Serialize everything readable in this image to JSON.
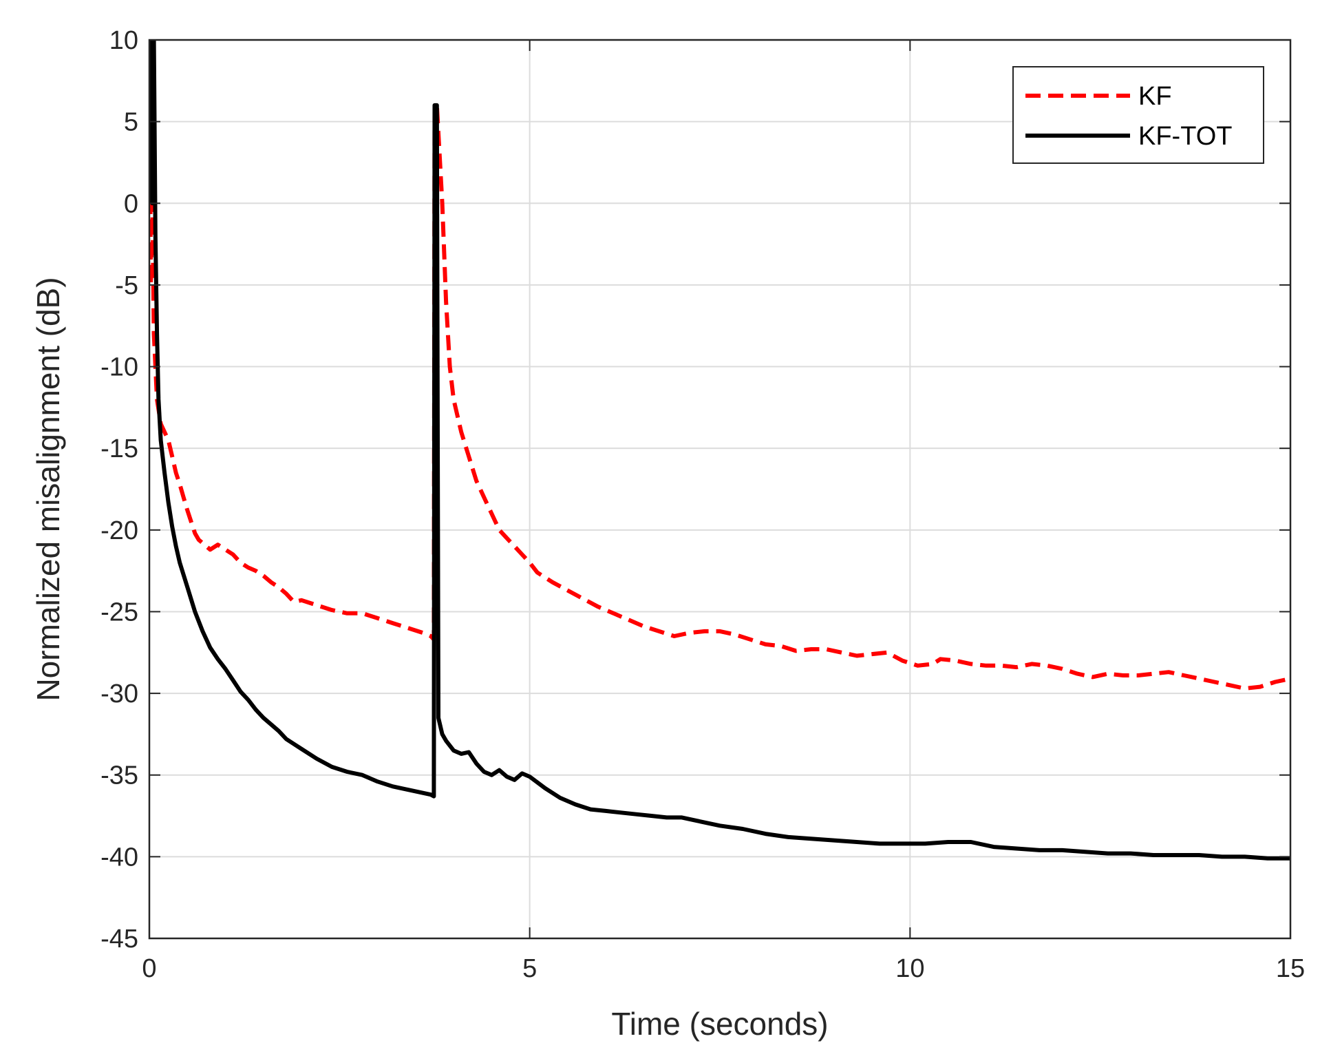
{
  "chart_data": {
    "type": "line",
    "xlabel": "Time (seconds)",
    "ylabel": "Normalized misalignment (dB)",
    "xlim": [
      0,
      15
    ],
    "ylim": [
      -45,
      10
    ],
    "xticks": [
      0,
      5,
      10,
      15
    ],
    "yticks": [
      10,
      5,
      0,
      -5,
      -10,
      -15,
      -20,
      -25,
      -30,
      -35,
      -40,
      -45
    ],
    "grid": true,
    "legend_position": "top-right",
    "series": [
      {
        "name": "KF",
        "color": "#ff0000",
        "style": "dashed",
        "points": [
          [
            0,
            10
          ],
          [
            0.02,
            -5
          ],
          [
            0.04,
            0
          ],
          [
            0.06,
            -8
          ],
          [
            0.08,
            -10
          ],
          [
            0.1,
            -12
          ],
          [
            0.15,
            -13.5
          ],
          [
            0.2,
            -14
          ],
          [
            0.25,
            -14.5
          ],
          [
            0.3,
            -15.5
          ],
          [
            0.35,
            -16.5
          ],
          [
            0.4,
            -17.2
          ],
          [
            0.45,
            -18
          ],
          [
            0.5,
            -18.8
          ],
          [
            0.55,
            -19.5
          ],
          [
            0.6,
            -20.2
          ],
          [
            0.65,
            -20.6
          ],
          [
            0.7,
            -20.8
          ],
          [
            0.8,
            -21.2
          ],
          [
            0.9,
            -20.9
          ],
          [
            1.0,
            -21.2
          ],
          [
            1.1,
            -21.5
          ],
          [
            1.2,
            -22
          ],
          [
            1.3,
            -22.3
          ],
          [
            1.4,
            -22.5
          ],
          [
            1.5,
            -22.8
          ],
          [
            1.6,
            -23.2
          ],
          [
            1.7,
            -23.5
          ],
          [
            1.8,
            -23.9
          ],
          [
            1.9,
            -24.4
          ],
          [
            2.0,
            -24.3
          ],
          [
            2.2,
            -24.6
          ],
          [
            2.4,
            -24.9
          ],
          [
            2.6,
            -25.1
          ],
          [
            2.8,
            -25.1
          ],
          [
            3.0,
            -25.4
          ],
          [
            3.2,
            -25.7
          ],
          [
            3.4,
            -26.0
          ],
          [
            3.6,
            -26.3
          ],
          [
            3.7,
            -26.5
          ],
          [
            3.74,
            -26.7
          ],
          [
            3.75,
            6
          ],
          [
            3.78,
            6
          ],
          [
            3.85,
            0
          ],
          [
            3.9,
            -6
          ],
          [
            3.95,
            -10
          ],
          [
            4.0,
            -12
          ],
          [
            4.1,
            -14
          ],
          [
            4.2,
            -15.5
          ],
          [
            4.3,
            -17
          ],
          [
            4.4,
            -18
          ],
          [
            4.5,
            -19
          ],
          [
            4.6,
            -20
          ],
          [
            4.7,
            -20.5
          ],
          [
            4.8,
            -21
          ],
          [
            4.9,
            -21.5
          ],
          [
            5.0,
            -22
          ],
          [
            5.1,
            -22.6
          ],
          [
            5.3,
            -23.2
          ],
          [
            5.5,
            -23.7
          ],
          [
            5.7,
            -24.2
          ],
          [
            5.9,
            -24.7
          ],
          [
            6.1,
            -25.1
          ],
          [
            6.3,
            -25.5
          ],
          [
            6.5,
            -25.9
          ],
          [
            6.7,
            -26.2
          ],
          [
            6.9,
            -26.5
          ],
          [
            7.1,
            -26.3
          ],
          [
            7.3,
            -26.2
          ],
          [
            7.5,
            -26.2
          ],
          [
            7.7,
            -26.4
          ],
          [
            7.9,
            -26.7
          ],
          [
            8.1,
            -27
          ],
          [
            8.3,
            -27.1
          ],
          [
            8.5,
            -27.4
          ],
          [
            8.7,
            -27.3
          ],
          [
            8.9,
            -27.3
          ],
          [
            9.1,
            -27.5
          ],
          [
            9.3,
            -27.7
          ],
          [
            9.5,
            -27.6
          ],
          [
            9.7,
            -27.5
          ],
          [
            9.9,
            -28
          ],
          [
            10.1,
            -28.3
          ],
          [
            10.3,
            -28.2
          ],
          [
            10.4,
            -27.9
          ],
          [
            10.6,
            -28
          ],
          [
            10.8,
            -28.2
          ],
          [
            11.0,
            -28.3
          ],
          [
            11.2,
            -28.3
          ],
          [
            11.4,
            -28.4
          ],
          [
            11.6,
            -28.2
          ],
          [
            11.8,
            -28.3
          ],
          [
            12.0,
            -28.5
          ],
          [
            12.2,
            -28.8
          ],
          [
            12.4,
            -29
          ],
          [
            12.6,
            -28.8
          ],
          [
            12.8,
            -28.9
          ],
          [
            13.0,
            -28.9
          ],
          [
            13.2,
            -28.8
          ],
          [
            13.4,
            -28.7
          ],
          [
            13.6,
            -28.9
          ],
          [
            13.8,
            -29.1
          ],
          [
            14.0,
            -29.3
          ],
          [
            14.2,
            -29.5
          ],
          [
            14.4,
            -29.7
          ],
          [
            14.6,
            -29.6
          ],
          [
            14.8,
            -29.3
          ],
          [
            15.0,
            -29.1
          ]
        ]
      },
      {
        "name": "KF-TOT",
        "color": "#000000",
        "style": "solid",
        "points": [
          [
            0,
            0
          ],
          [
            0.02,
            10
          ],
          [
            0.04,
            0
          ],
          [
            0.06,
            10
          ],
          [
            0.08,
            -2
          ],
          [
            0.1,
            -8
          ],
          [
            0.12,
            -12
          ],
          [
            0.15,
            -14.5
          ],
          [
            0.2,
            -16.5
          ],
          [
            0.25,
            -18.3
          ],
          [
            0.3,
            -19.8
          ],
          [
            0.35,
            -21
          ],
          [
            0.4,
            -22
          ],
          [
            0.5,
            -23.5
          ],
          [
            0.6,
            -25
          ],
          [
            0.7,
            -26.2
          ],
          [
            0.8,
            -27.2
          ],
          [
            0.9,
            -27.9
          ],
          [
            1.0,
            -28.5
          ],
          [
            1.1,
            -29.2
          ],
          [
            1.2,
            -29.9
          ],
          [
            1.3,
            -30.4
          ],
          [
            1.4,
            -31
          ],
          [
            1.5,
            -31.5
          ],
          [
            1.6,
            -31.9
          ],
          [
            1.7,
            -32.3
          ],
          [
            1.8,
            -32.8
          ],
          [
            1.9,
            -33.1
          ],
          [
            2.0,
            -33.4
          ],
          [
            2.2,
            -34.0
          ],
          [
            2.4,
            -34.5
          ],
          [
            2.6,
            -34.8
          ],
          [
            2.8,
            -35.0
          ],
          [
            3.0,
            -35.4
          ],
          [
            3.2,
            -35.7
          ],
          [
            3.4,
            -35.9
          ],
          [
            3.6,
            -36.1
          ],
          [
            3.7,
            -36.2
          ],
          [
            3.74,
            -36.3
          ],
          [
            3.75,
            6
          ],
          [
            3.78,
            6
          ],
          [
            3.8,
            -31.5
          ],
          [
            3.85,
            -32.5
          ],
          [
            3.9,
            -32.9
          ],
          [
            4.0,
            -33.5
          ],
          [
            4.1,
            -33.7
          ],
          [
            4.2,
            -33.6
          ],
          [
            4.3,
            -34.3
          ],
          [
            4.4,
            -34.8
          ],
          [
            4.5,
            -35
          ],
          [
            4.6,
            -34.7
          ],
          [
            4.7,
            -35.1
          ],
          [
            4.8,
            -35.3
          ],
          [
            4.9,
            -34.9
          ],
          [
            5.0,
            -35.1
          ],
          [
            5.2,
            -35.8
          ],
          [
            5.4,
            -36.4
          ],
          [
            5.6,
            -36.8
          ],
          [
            5.8,
            -37.1
          ],
          [
            6.0,
            -37.2
          ],
          [
            6.2,
            -37.3
          ],
          [
            6.4,
            -37.4
          ],
          [
            6.6,
            -37.5
          ],
          [
            6.8,
            -37.6
          ],
          [
            7.0,
            -37.6
          ],
          [
            7.2,
            -37.8
          ],
          [
            7.5,
            -38.1
          ],
          [
            7.8,
            -38.3
          ],
          [
            8.1,
            -38.6
          ],
          [
            8.4,
            -38.8
          ],
          [
            8.7,
            -38.9
          ],
          [
            9.0,
            -39.0
          ],
          [
            9.3,
            -39.1
          ],
          [
            9.6,
            -39.2
          ],
          [
            9.9,
            -39.2
          ],
          [
            10.2,
            -39.2
          ],
          [
            10.5,
            -39.1
          ],
          [
            10.8,
            -39.1
          ],
          [
            11.1,
            -39.4
          ],
          [
            11.4,
            -39.5
          ],
          [
            11.7,
            -39.6
          ],
          [
            12.0,
            -39.6
          ],
          [
            12.3,
            -39.7
          ],
          [
            12.6,
            -39.8
          ],
          [
            12.9,
            -39.8
          ],
          [
            13.2,
            -39.9
          ],
          [
            13.5,
            -39.9
          ],
          [
            13.8,
            -39.9
          ],
          [
            14.1,
            -40.0
          ],
          [
            14.4,
            -40.0
          ],
          [
            14.7,
            -40.1
          ],
          [
            15.0,
            -40.1
          ]
        ]
      }
    ]
  }
}
